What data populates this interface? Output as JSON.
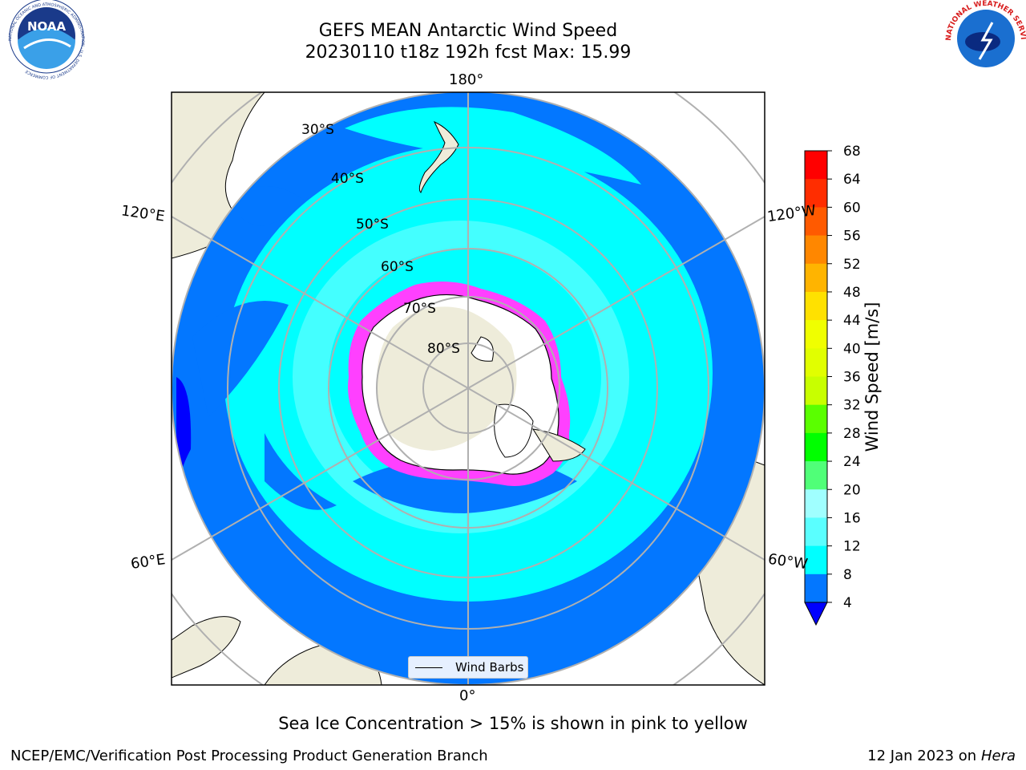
{
  "title": {
    "line1": "GEFS MEAN Antarctic Wind Speed",
    "line2": "20230110 t18z 192h fcst   Max: 15.99"
  },
  "map": {
    "projection": "south-polar-stereographic",
    "lon_labels": {
      "top": "180°",
      "bottom": "0°",
      "upper_left": "120°E",
      "upper_right": "120°W",
      "lower_left": "60°E",
      "lower_right": "60°W"
    },
    "lat_labels": [
      "30°S",
      "40°S",
      "50°S",
      "60°S",
      "70°S",
      "80°S"
    ],
    "colors": {
      "land": "#eeecda",
      "ice": "#ffffff",
      "ocean_4_8": "#0377ff",
      "ocean_8_12": "#00ffff",
      "ocean_12_16": "#44ffff",
      "ocean_0_4": "#0000ff",
      "sea_ice_edge": "#ff40ff",
      "graticule": "#b0b0b0"
    }
  },
  "colorbar": {
    "label": "Wind Speed [m/s]",
    "ticks": [
      "68",
      "64",
      "60",
      "56",
      "52",
      "48",
      "44",
      "40",
      "36",
      "32",
      "28",
      "24",
      "20",
      "16",
      "12",
      "8",
      "4"
    ],
    "colors": [
      "#ff0000",
      "#ff2d00",
      "#ff5a00",
      "#ff8700",
      "#ffb400",
      "#ffe100",
      "#f0ff00",
      "#e1ff00",
      "#c8ff00",
      "#5aff00",
      "#00ff00",
      "#50ff78",
      "#a0ffff",
      "#5affff",
      "#00ffff",
      "#0377ff"
    ],
    "extend_color": "#0000ff"
  },
  "legend": {
    "label": "Wind Barbs"
  },
  "note": "Sea Ice Concentration > 15% is shown in pink to yellow",
  "footer": {
    "left": "NCEP/EMC/Verification Post Processing Product Generation Branch",
    "right_date": "12 Jan 2023 on ",
    "right_host": "Hera"
  },
  "logos": {
    "noaa": {
      "text": "NOAA",
      "ring_text": "NATIONAL OCEANIC AND ATMOSPHERIC ADMINISTRATION · U.S. DEPARTMENT OF COMMERCE"
    },
    "nws": {
      "ring_text": "NATIONAL WEATHER SERVICE"
    }
  }
}
